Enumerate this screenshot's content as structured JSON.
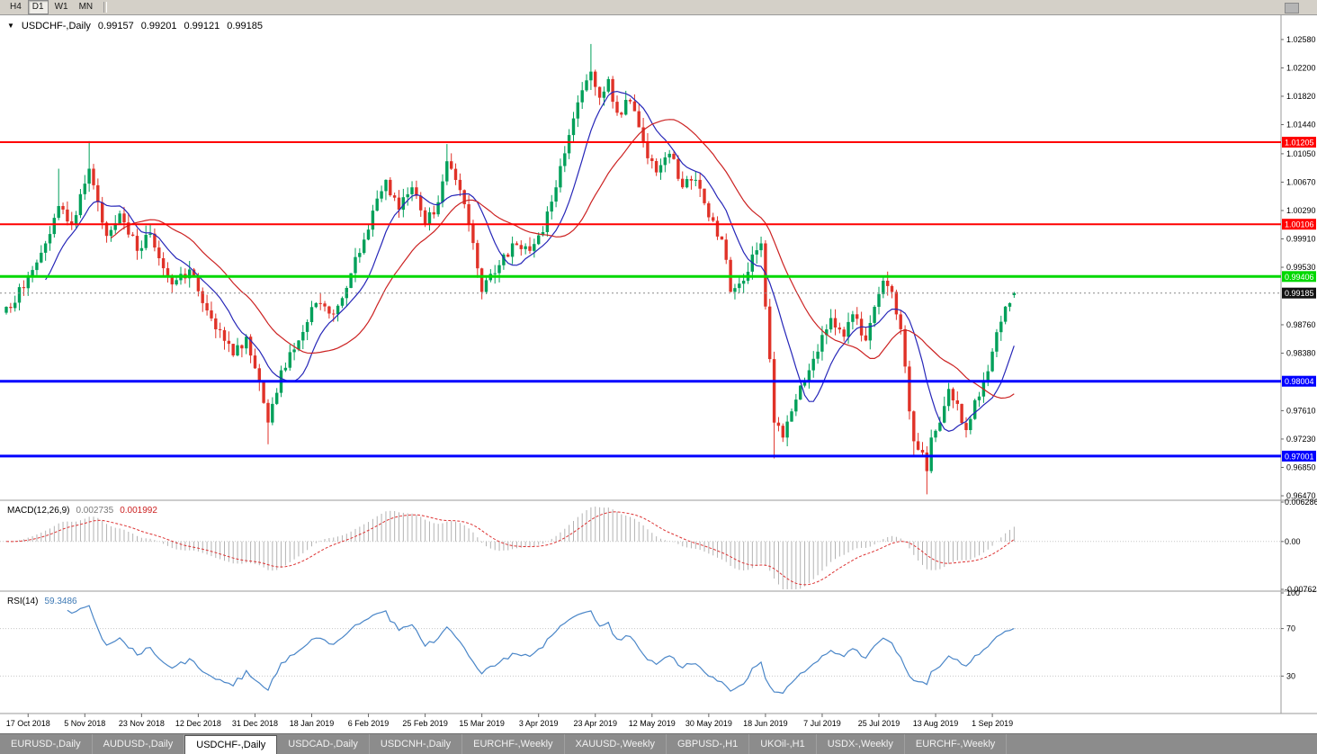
{
  "toolbar": {
    "timeframes": [
      "H4",
      "D1",
      "W1",
      "MN"
    ],
    "active": "D1"
  },
  "chart": {
    "title": {
      "dropdown_icon": "▼",
      "symbol": "USDCHF-,Daily",
      "open": "0.99157",
      "high": "0.99201",
      "low": "0.99121",
      "close": "0.99185"
    }
  },
  "panels": {
    "macd": {
      "name": "MACD(12,26,9)",
      "main_value": "0.002735",
      "signal_value": "0.001992"
    },
    "rsi": {
      "name": "RSI(14)",
      "value": "59.3486"
    }
  },
  "bottom_tabs": {
    "active_index": 2,
    "items": [
      "EURUSD-,Daily",
      "AUDUSD-,Daily",
      "USDCHF-,Daily",
      "USDCAD-,Daily",
      "USDCNH-,Daily",
      "EURCHF-,Weekly",
      "XAUUSD-,Weekly",
      "GBPUSD-,H1",
      "UKOil-,H1",
      "USDX-,Weekly",
      "EURCHF-,Weekly"
    ]
  },
  "chart_data": {
    "type": "candlestick",
    "symbol": "USDCHF",
    "timeframe": "Daily",
    "last_ohlc": {
      "open": 0.99157,
      "high": 0.99201,
      "low": 0.99121,
      "close": 0.99185
    },
    "ylim": [
      0.9641,
      1.0288
    ],
    "y_ticks": [
      "1.02580",
      "1.02200",
      "1.01820",
      "1.01440",
      "1.01050",
      "1.00670",
      "1.00290",
      "0.99910",
      "0.99530",
      "0.98760",
      "0.98380",
      "0.97610",
      "0.97230",
      "0.96850",
      "0.96470"
    ],
    "x_labels": [
      "17 Oct 2018",
      "5 Nov 2018",
      "23 Nov 2018",
      "12 Dec 2018",
      "31 Dec 2018",
      "18 Jan 2019",
      "6 Feb 2019",
      "25 Feb 2019",
      "15 Mar 2019",
      "3 Apr 2019",
      "23 Apr 2019",
      "12 May 2019",
      "30 May 2019",
      "18 Jun 2019",
      "7 Jul 2019",
      "25 Jul 2019",
      "13 Aug 2019",
      "1 Sep 2019"
    ],
    "labels_every_n_candles": 13,
    "first_label_index": 5,
    "levels": [
      {
        "price": 1.01205,
        "label": "1.01205",
        "color": "#ff0000",
        "width": 2
      },
      {
        "price": 1.00106,
        "label": "1.00106",
        "color": "#ff0000",
        "width": 2
      },
      {
        "price": 0.99406,
        "label": "0.99406",
        "color": "#00d800",
        "width": 3
      },
      {
        "price": 0.98004,
        "label": "0.98004",
        "color": "#0000ff",
        "width": 3
      },
      {
        "price": 0.97001,
        "label": "0.97001",
        "color": "#0000ff",
        "width": 3
      }
    ],
    "current_price": {
      "price": 0.99185,
      "label": "0.99185",
      "tag_color": "#111111"
    },
    "candle_count": 232,
    "x_step": 4.85,
    "seed": 7,
    "noise": 0.0008,
    "wick": 0.0013,
    "price_path": {
      "indices": [
        0,
        4,
        9,
        12,
        15,
        18,
        19,
        21,
        23,
        26,
        30,
        33,
        38,
        42,
        45,
        48,
        52,
        55,
        58,
        60,
        61,
        63,
        67,
        71,
        75,
        79,
        82,
        85,
        87,
        90,
        93,
        96,
        99,
        101,
        103,
        106,
        109,
        112,
        116,
        120,
        123,
        126,
        129,
        132,
        134,
        136,
        138,
        140,
        143,
        146,
        149,
        152,
        155,
        158,
        161,
        164,
        166,
        169,
        171,
        173,
        176,
        178,
        180,
        183,
        186,
        189,
        192,
        194,
        197,
        199,
        201,
        203,
        205,
        206,
        207,
        208,
        210,
        211,
        212,
        214,
        216,
        218,
        220,
        222,
        224,
        226,
        228,
        230,
        231
      ],
      "closes": [
        0.99,
        0.9925,
        0.9985,
        1.0035,
        1.001,
        1.0065,
        1.0085,
        1.004,
        0.9995,
        1.0025,
        0.9975,
        0.9998,
        0.993,
        0.995,
        0.9905,
        0.987,
        0.9835,
        0.986,
        0.98,
        0.9745,
        0.977,
        0.9815,
        0.9855,
        0.9905,
        0.989,
        0.9945,
        0.999,
        1.0045,
        1.007,
        1.003,
        1.006,
        1.001,
        1.004,
        1.0095,
        1.007,
        1.001,
        0.992,
        0.9945,
        0.9985,
        0.9975,
        1.0,
        1.006,
        1.013,
        1.019,
        1.0215,
        1.018,
        1.0205,
        1.016,
        1.0175,
        1.012,
        1.008,
        1.0105,
        1.006,
        1.007,
        1.002,
        0.999,
        0.992,
        0.9935,
        0.997,
        0.9985,
        0.9745,
        0.9725,
        0.976,
        0.98,
        0.984,
        0.9885,
        0.986,
        0.989,
        0.9855,
        0.99,
        0.9935,
        0.992,
        0.987,
        0.982,
        0.976,
        0.972,
        0.9705,
        0.968,
        0.9725,
        0.9745,
        0.979,
        0.977,
        0.9735,
        0.9775,
        0.98,
        0.984,
        0.988,
        0.9905,
        0.99185
      ]
    },
    "spikes": [
      {
        "i": 12,
        "high": 1.0085
      },
      {
        "i": 19,
        "high": 1.0122
      },
      {
        "i": 101,
        "high": 1.0118
      },
      {
        "i": 134,
        "high": 1.0252
      },
      {
        "i": 60,
        "low": 0.9716
      },
      {
        "i": 176,
        "low": 0.9697
      },
      {
        "i": 208,
        "low": 0.97
      },
      {
        "i": 211,
        "low": 0.9649
      },
      {
        "i": 220,
        "low": 0.9725
      }
    ],
    "moving_averages": [
      {
        "period": 10,
        "color": "#2626b8"
      },
      {
        "period": 25,
        "color": "#cc2222"
      }
    ],
    "macd": {
      "params": [
        12,
        26,
        9
      ],
      "range": [
        -0.00762,
        0.006286
      ],
      "ticks": [
        {
          "label": "0.006286",
          "value": 0.006286
        },
        {
          "label": "0.00",
          "value": 0
        },
        {
          "label": "-0.00762",
          "value": -0.00762
        }
      ],
      "hist_color": "#b2b2b2",
      "signal_color": "#dd3333"
    },
    "rsi": {
      "period": 14,
      "color": "#4a86c8",
      "levels": [
        70,
        30
      ],
      "ticks": [
        {
          "label": "100",
          "value": 100
        },
        {
          "label": "70",
          "value": 70
        },
        {
          "label": "30",
          "value": 30
        }
      ]
    },
    "colors": {
      "up": "#00a05a",
      "down": "#e03228",
      "axis_text": "#000000"
    }
  }
}
